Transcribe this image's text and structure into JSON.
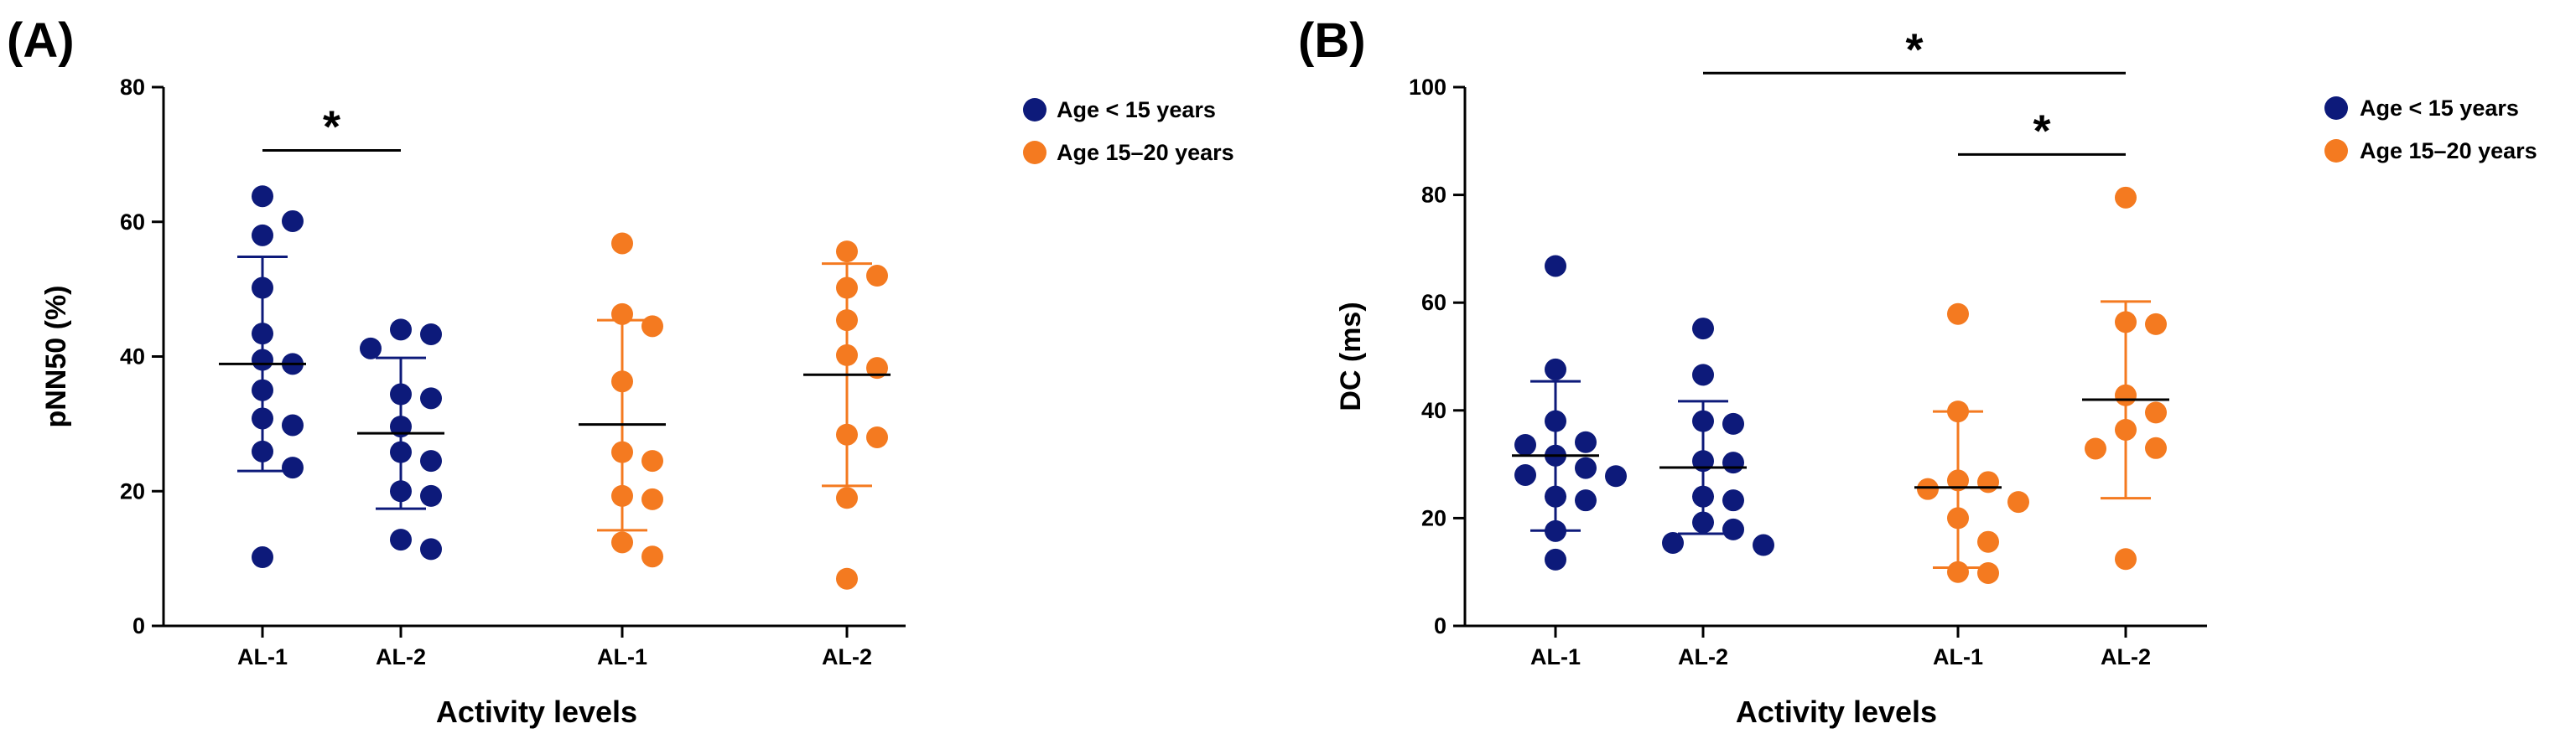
{
  "chart_data": [
    {
      "type": "scatter",
      "panel_label": "(A)",
      "ylabel": "pNN50 (%)",
      "xlabel": "Activity levels",
      "ylim": [
        0,
        80
      ],
      "yticks": [
        "0",
        "20",
        "40",
        "60",
        "80"
      ],
      "legend_position": "right",
      "groups": [
        {
          "label": "AL-1",
          "series": "Age < 15 years",
          "color": "#0d1a7a",
          "mean": 38.9,
          "sd_low": 23.0,
          "sd_high": 54.8,
          "values": [
            63.8,
            58.0,
            60.1,
            50.2,
            43.4,
            39.5,
            38.9,
            35.0,
            30.8,
            29.8,
            25.9,
            23.5,
            10.2
          ]
        },
        {
          "label": "AL-2",
          "series": "Age < 15 years",
          "color": "#0d1a7a",
          "mean": 28.6,
          "sd_low": 17.4,
          "sd_high": 39.8,
          "values": [
            43.3,
            44.0,
            41.2,
            34.4,
            33.8,
            29.6,
            24.5,
            25.8,
            20.0,
            19.3,
            12.8,
            11.4
          ]
        },
        {
          "label": "AL-1",
          "series": "Age 15–20 years",
          "color": "#f47a20",
          "mean": 29.9,
          "sd_low": 14.2,
          "sd_high": 45.4,
          "values": [
            56.8,
            46.3,
            44.5,
            36.3,
            25.8,
            24.5,
            19.3,
            18.8,
            12.4,
            10.3
          ]
        },
        {
          "label": "AL-2",
          "series": "Age 15–20 years",
          "color": "#f47a20",
          "mean": 37.3,
          "sd_low": 20.8,
          "sd_high": 53.8,
          "values": [
            55.6,
            52.0,
            50.2,
            45.4,
            40.2,
            38.3,
            28.4,
            28.0,
            19.0,
            7.0
          ]
        }
      ],
      "significance": [
        {
          "from_group": 0,
          "to_group": 1,
          "y": 70.6,
          "label": "*"
        }
      ],
      "legend": [
        {
          "label": "Age < 15 years",
          "color": "#0d1a7a"
        },
        {
          "label": "Age 15–20 years",
          "color": "#f47a20"
        }
      ]
    },
    {
      "type": "scatter",
      "panel_label": "(B)",
      "ylabel": "DC (ms)",
      "xlabel": "Activity levels",
      "ylim": [
        0,
        100
      ],
      "yticks": [
        "0",
        "20",
        "40",
        "60",
        "80",
        "100"
      ],
      "legend_position": "right",
      "groups": [
        {
          "label": "AL-1",
          "series": "Age < 15 years",
          "color": "#0d1a7a",
          "mean": 31.6,
          "sd_low": 17.7,
          "sd_high": 45.4,
          "values": [
            66.8,
            47.6,
            38.0,
            34.1,
            33.6,
            31.6,
            29.3,
            28.0,
            27.8,
            24.0,
            23.3,
            17.6,
            12.3
          ]
        },
        {
          "label": "AL-2",
          "series": "Age < 15 years",
          "color": "#0d1a7a",
          "mean": 29.4,
          "sd_low": 17.1,
          "sd_high": 41.7,
          "values": [
            55.2,
            46.6,
            38.0,
            37.5,
            30.6,
            30.3,
            24.0,
            23.3,
            19.2,
            17.9,
            15.4,
            15.0
          ]
        },
        {
          "label": "AL-1",
          "series": "Age 15–20 years",
          "color": "#f47a20",
          "mean": 25.7,
          "sd_low": 10.8,
          "sd_high": 39.8,
          "values": [
            57.9,
            39.8,
            27.0,
            26.7,
            25.4,
            23.0,
            20.0,
            15.6,
            10.0,
            9.8
          ]
        },
        {
          "label": "AL-2",
          "series": "Age 15–20 years",
          "color": "#f47a20",
          "mean": 42.0,
          "sd_low": 23.7,
          "sd_high": 60.2,
          "values": [
            79.5,
            56.4,
            56.0,
            42.8,
            39.6,
            36.4,
            33.0,
            32.9,
            12.4
          ]
        }
      ],
      "significance": [
        {
          "from_group": 1,
          "to_group": 3,
          "y": 102.6,
          "label": "*"
        },
        {
          "from_group": 2,
          "to_group": 3,
          "y": 87.5,
          "label": "*"
        }
      ],
      "legend": [
        {
          "label": "Age < 15 years",
          "color": "#0d1a7a"
        },
        {
          "label": "Age 15–20 years",
          "color": "#f47a20"
        }
      ]
    }
  ]
}
